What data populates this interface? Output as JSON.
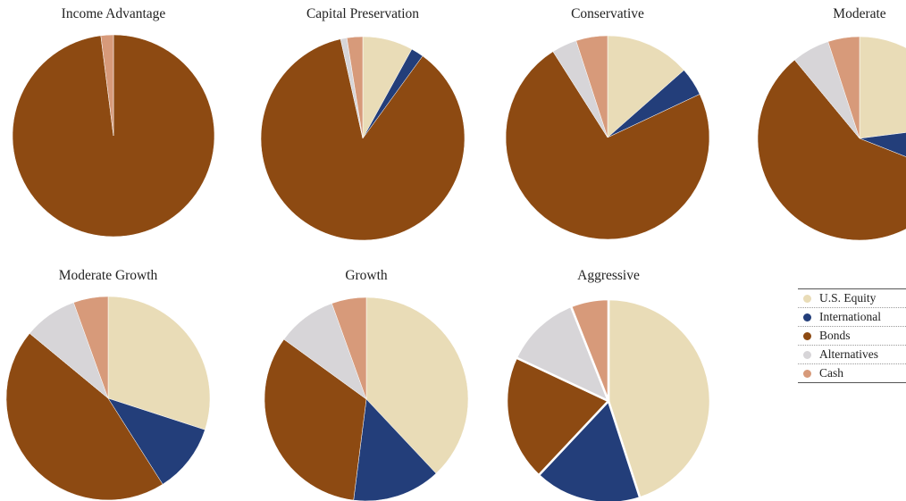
{
  "chart_data": [
    {
      "type": "pie",
      "title": "Income Advantage",
      "categories": [
        "U.S. Equity",
        "International",
        "Bonds",
        "Alternatives",
        "Cash"
      ],
      "values": [
        0,
        0,
        98,
        0,
        2
      ]
    },
    {
      "type": "pie",
      "title": "Capital Preservation",
      "categories": [
        "U.S. Equity",
        "International",
        "Bonds",
        "Alternatives",
        "Cash"
      ],
      "values": [
        8,
        2,
        86.5,
        1,
        2.5
      ]
    },
    {
      "type": "pie",
      "title": "Conservative",
      "categories": [
        "U.S. Equity",
        "International",
        "Bonds",
        "Alternatives",
        "Cash"
      ],
      "values": [
        13.5,
        4.5,
        73,
        4,
        5
      ]
    },
    {
      "type": "pie",
      "title": "Moderate",
      "categories": [
        "U.S. Equity",
        "International",
        "Bonds",
        "Alternatives",
        "Cash"
      ],
      "values": [
        23,
        8,
        58,
        6,
        5
      ]
    },
    {
      "type": "pie",
      "title": "Moderate Growth",
      "categories": [
        "U.S. Equity",
        "International",
        "Bonds",
        "Alternatives",
        "Cash"
      ],
      "values": [
        30,
        11,
        45,
        8.5,
        5.5
      ]
    },
    {
      "type": "pie",
      "title": "Growth",
      "categories": [
        "U.S. Equity",
        "International",
        "Bonds",
        "Alternatives",
        "Cash"
      ],
      "values": [
        38,
        14,
        33,
        9.5,
        5.5
      ]
    },
    {
      "type": "pie",
      "title": "Aggressive",
      "categories": [
        "U.S. Equity",
        "International",
        "Bonds",
        "Alternatives",
        "Cash"
      ],
      "values": [
        45,
        17,
        20,
        12,
        6
      ]
    }
  ],
  "legend": {
    "placement": "bottom-right",
    "items": [
      {
        "label": "U.S. Equity",
        "color": "#e9dcb7"
      },
      {
        "label": "International",
        "color": "#233e7a"
      },
      {
        "label": "Bonds",
        "color": "#8d4a12"
      },
      {
        "label": "Alternatives",
        "color": "#d7d5d8"
      },
      {
        "label": "Cash",
        "color": "#d79a7a"
      }
    ]
  },
  "colors": {
    "us_equity": "#e9dcb7",
    "international": "#233e7a",
    "bonds": "#8d4a12",
    "alternatives": "#d7d5d8",
    "cash": "#d79a7a",
    "slice_border": "#ffffff",
    "title_text": "#222222"
  }
}
